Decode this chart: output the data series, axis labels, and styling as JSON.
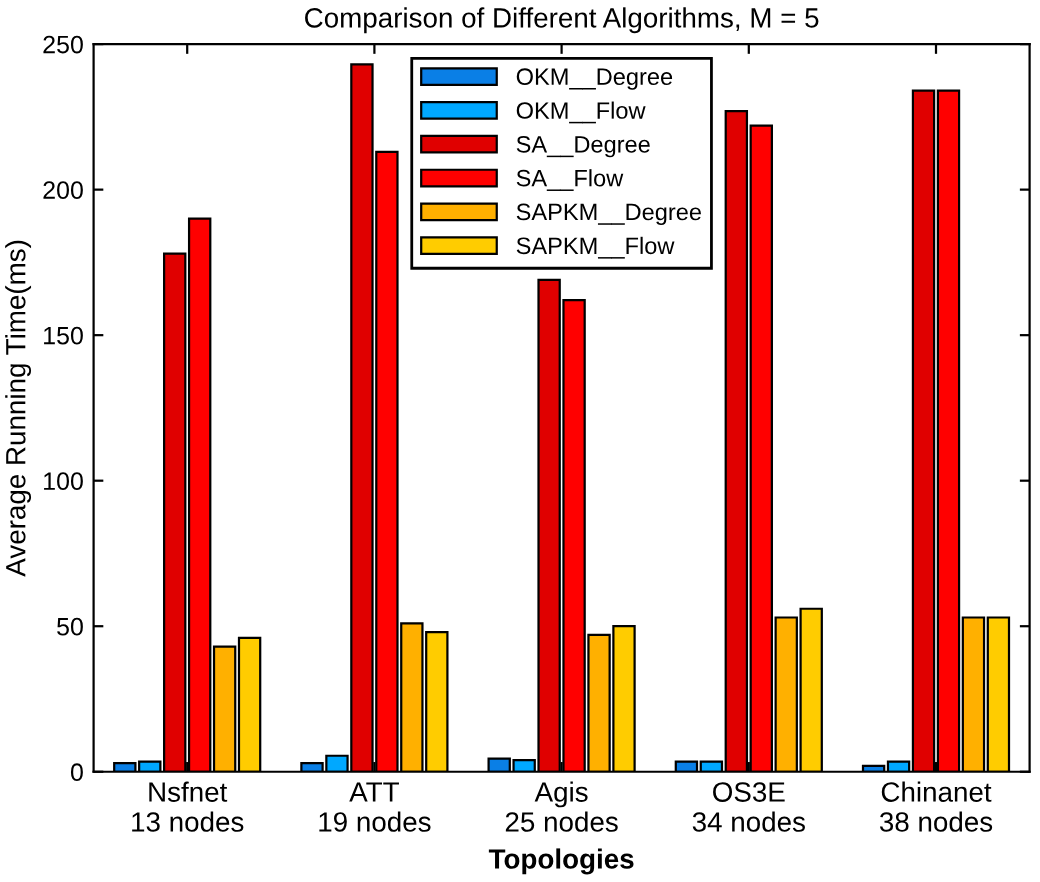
{
  "chart_data": {
    "type": "bar",
    "title": "Comparison of Different Algorithms, M = 5",
    "xlabel": "Topologies",
    "ylabel": "Average Running Time(ms)",
    "categories": [
      "Nsfnet\n13 nodes",
      "ATT\n19 nodes",
      "Agis\n25 nodes",
      "OS3E\n34 nodes",
      "Chinanet\n38 nodes"
    ],
    "series": [
      {
        "name": "OKM__Degree",
        "color": "#0a7fe6",
        "values": [
          3,
          3,
          4.5,
          3.5,
          2
        ]
      },
      {
        "name": "OKM__Flow",
        "color": "#00a8ff",
        "values": [
          3.5,
          5.5,
          4,
          3.5,
          3.5
        ]
      },
      {
        "name": "SA__Degree",
        "color": "#e00000",
        "values": [
          178,
          243,
          169,
          227,
          234
        ]
      },
      {
        "name": "SA__Flow",
        "color": "#ff0000",
        "values": [
          190,
          213,
          162,
          222,
          234
        ]
      },
      {
        "name": "SAPKM__Degree",
        "color": "#ffb000",
        "values": [
          43,
          51,
          47,
          53,
          53
        ]
      },
      {
        "name": "SAPKM__Flow",
        "color": "#ffcc00",
        "values": [
          46,
          48,
          50,
          56,
          53
        ]
      }
    ],
    "ylim": [
      0,
      250
    ],
    "yticks": [
      0,
      50,
      100,
      150,
      200,
      250
    ],
    "grid": false,
    "legend": "top"
  }
}
